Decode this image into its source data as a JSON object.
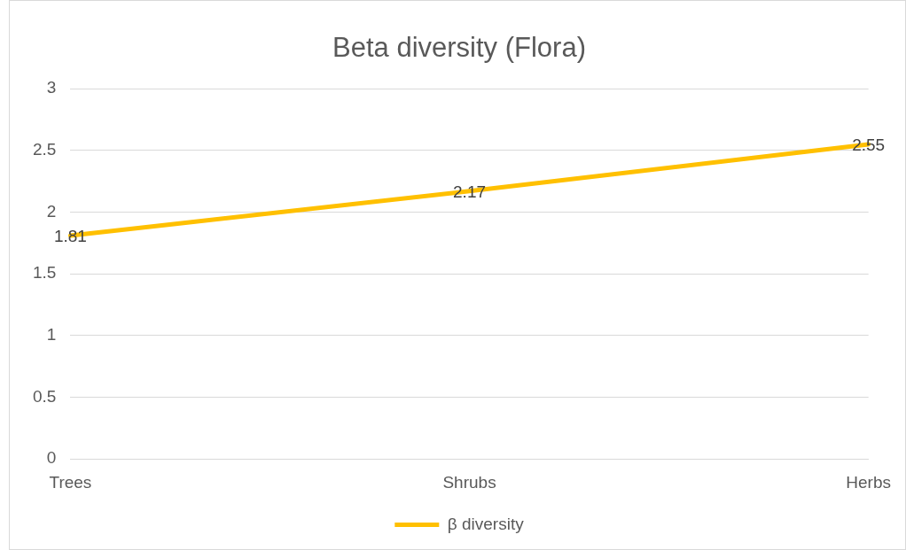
{
  "chart_data": {
    "type": "line",
    "title": "Beta diversity (Flora)",
    "categories": [
      "Trees",
      "Shrubs",
      "Herbs"
    ],
    "series": [
      {
        "name": "β diversity",
        "color": "#ffc000",
        "values": [
          1.81,
          2.17,
          2.55
        ]
      }
    ],
    "ylim": [
      0,
      3
    ],
    "yticks": [
      0,
      0.5,
      1,
      1.5,
      2,
      2.5,
      3
    ],
    "grid": "y",
    "legend": "bottom",
    "marker": "none",
    "line_style": "solid",
    "data_labels": true
  }
}
